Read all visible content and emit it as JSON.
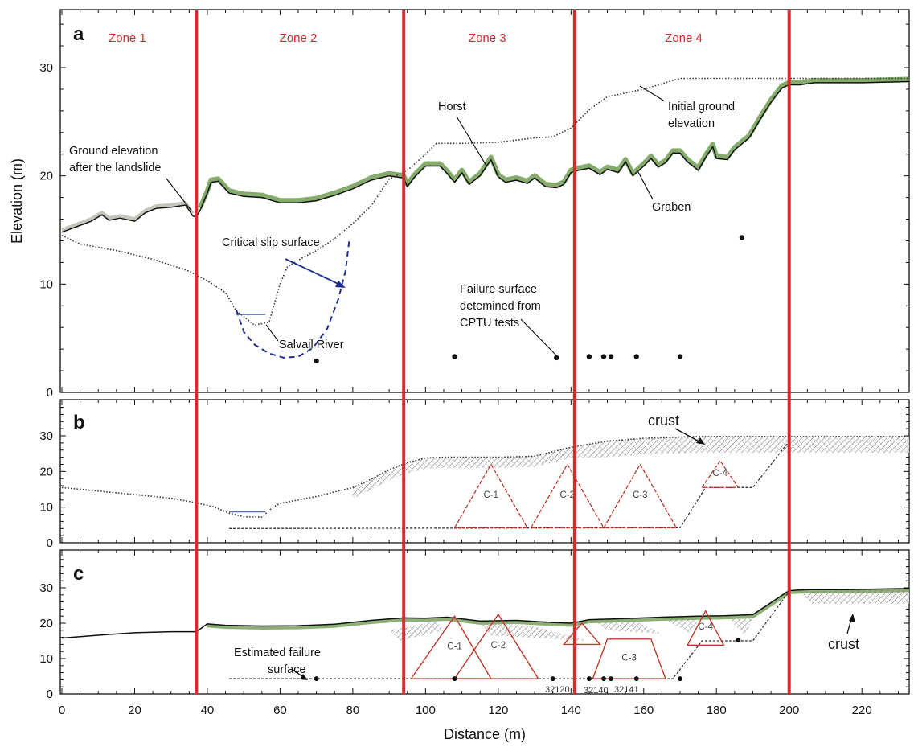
{
  "chart_data": {
    "type": "line",
    "xlabel": "Distance (m)",
    "ylabel": "Elevation (m)",
    "xlim": [
      0,
      233
    ],
    "x_ticks": [
      0,
      20,
      40,
      60,
      80,
      100,
      120,
      140,
      160,
      180,
      200,
      220
    ],
    "zone_boundaries": [
      37,
      94,
      141,
      200
    ],
    "zones": [
      {
        "label": "Zone 1",
        "x": 18
      },
      {
        "label": "Zone 2",
        "x": 65
      },
      {
        "label": "Zone 3",
        "x": 117
      },
      {
        "label": "Zone 4",
        "x": 171
      }
    ],
    "accent_colors": {
      "zones": "#e0262b",
      "triangles": "#c0392b",
      "slip": "#1f2f8f",
      "vegetation": "#5c8f3c"
    },
    "panels": [
      {
        "label": "a",
        "ylim": [
          0,
          35
        ],
        "y_ticks": [
          0,
          10,
          20,
          30
        ],
        "ground_after": [
          [
            0,
            14.8
          ],
          [
            4,
            15.3
          ],
          [
            8,
            15.8
          ],
          [
            11,
            16.4
          ],
          [
            13,
            15.9
          ],
          [
            16,
            16.1
          ],
          [
            20,
            15.8
          ],
          [
            23,
            16.6
          ],
          [
            26,
            17.0
          ],
          [
            30,
            17.1
          ],
          [
            34,
            17.3
          ],
          [
            36,
            16.3
          ],
          [
            37,
            16.2
          ],
          [
            38,
            16.8
          ],
          [
            40,
            18.4
          ],
          [
            41,
            19.4
          ],
          [
            43,
            19.5
          ],
          [
            46,
            18.4
          ],
          [
            50,
            18.1
          ],
          [
            55,
            18.0
          ],
          [
            60,
            17.5
          ],
          [
            65,
            17.5
          ],
          [
            70,
            17.7
          ],
          [
            75,
            18.2
          ],
          [
            80,
            18.8
          ],
          [
            85,
            19.6
          ],
          [
            90,
            20.0
          ],
          [
            94,
            19.8
          ],
          [
            95,
            19.0
          ],
          [
            97,
            19.9
          ],
          [
            100,
            20.9
          ],
          [
            104,
            20.9
          ],
          [
            106,
            20.2
          ],
          [
            108,
            19.4
          ],
          [
            110,
            20.3
          ],
          [
            112,
            19.2
          ],
          [
            115,
            20.0
          ],
          [
            118,
            21.5
          ],
          [
            120,
            19.9
          ],
          [
            122,
            19.4
          ],
          [
            125,
            19.6
          ],
          [
            128,
            19.3
          ],
          [
            130,
            19.8
          ],
          [
            133,
            19.0
          ],
          [
            136,
            18.9
          ],
          [
            138,
            19.2
          ],
          [
            140,
            20.3
          ],
          [
            142,
            20.5
          ],
          [
            145,
            20.7
          ],
          [
            148,
            20.1
          ],
          [
            150,
            20.6
          ],
          [
            153,
            20.3
          ],
          [
            155,
            21.3
          ],
          [
            157,
            20.0
          ],
          [
            160,
            20.9
          ],
          [
            162,
            21.6
          ],
          [
            164,
            20.8
          ],
          [
            166,
            21.2
          ],
          [
            168,
            22.1
          ],
          [
            170,
            22.1
          ],
          [
            172,
            21.3
          ],
          [
            175,
            20.5
          ],
          [
            177,
            21.7
          ],
          [
            179,
            22.7
          ],
          [
            180,
            21.6
          ],
          [
            183,
            21.5
          ],
          [
            185,
            22.4
          ],
          [
            189,
            23.5
          ],
          [
            192,
            25.2
          ],
          [
            195,
            26.8
          ],
          [
            198,
            28.1
          ],
          [
            200,
            28.4
          ],
          [
            203,
            28.4
          ],
          [
            207,
            28.6
          ],
          [
            212,
            28.6
          ],
          [
            220,
            28.6
          ],
          [
            233,
            28.7
          ]
        ],
        "initial_ground": [
          [
            0,
            14.5
          ],
          [
            5,
            13.7
          ],
          [
            15,
            13.1
          ],
          [
            25,
            12.3
          ],
          [
            35,
            11.2
          ],
          [
            40,
            10.3
          ],
          [
            45,
            9.2
          ],
          [
            48,
            7.5
          ],
          [
            50,
            7.0
          ],
          [
            53,
            6.2
          ],
          [
            57,
            6.5
          ],
          [
            60,
            10.0
          ],
          [
            62,
            11.6
          ],
          [
            66,
            12.4
          ],
          [
            70,
            13.1
          ],
          [
            75,
            14.2
          ],
          [
            80,
            15.6
          ],
          [
            85,
            17.2
          ],
          [
            90,
            19.7
          ],
          [
            95,
            20.5
          ],
          [
            100,
            22.0
          ],
          [
            103,
            23.0
          ],
          [
            110,
            23.0
          ],
          [
            120,
            23.1
          ],
          [
            130,
            23.5
          ],
          [
            135,
            23.6
          ],
          [
            140,
            24.4
          ],
          [
            145,
            26.1
          ],
          [
            150,
            27.3
          ],
          [
            160,
            28.0
          ],
          [
            170,
            29.0
          ],
          [
            180,
            29.0
          ],
          [
            200,
            29.0
          ],
          [
            233,
            29.0
          ]
        ],
        "critical_slip_surface": [
          [
            48,
            7.6
          ],
          [
            50,
            5.6
          ],
          [
            53,
            4.4
          ],
          [
            57,
            3.6
          ],
          [
            61,
            3.2
          ],
          [
            65,
            3.3
          ],
          [
            69,
            4.1
          ],
          [
            73,
            5.9
          ],
          [
            76,
            8.6
          ],
          [
            78,
            11.2
          ],
          [
            79,
            14.0
          ]
        ],
        "river_level": {
          "x": [
            48,
            56
          ],
          "y": 7.2
        },
        "cptu_points": [
          [
            70,
            2.9
          ],
          [
            108,
            3.3
          ],
          [
            136,
            3.2
          ],
          [
            145,
            3.3
          ],
          [
            149,
            3.3
          ],
          [
            151,
            3.3
          ],
          [
            158,
            3.3
          ],
          [
            170,
            3.3
          ],
          [
            187,
            14.3
          ]
        ],
        "annotations": [
          "Ground elevation",
          "after the landslide",
          "Critical slip surface",
          "Salvail River",
          "Horst",
          "Failure surface",
          "detemined from",
          "CPTU tests",
          "Initial ground",
          "elevation",
          "Graben"
        ]
      },
      {
        "label": "b",
        "ylim": [
          0,
          39
        ],
        "y_ticks": [
          0,
          10,
          20,
          30
        ],
        "initial_ground": [
          [
            0,
            15.5
          ],
          [
            10,
            14.5
          ],
          [
            20,
            13.5
          ],
          [
            30,
            12.5
          ],
          [
            37,
            11.2
          ],
          [
            42,
            10.0
          ],
          [
            46,
            8.3
          ],
          [
            50,
            7.3
          ],
          [
            55,
            7.2
          ],
          [
            58,
            10.0
          ],
          [
            60,
            11.0
          ],
          [
            65,
            12.0
          ],
          [
            70,
            13.0
          ],
          [
            80,
            15.5
          ],
          [
            85,
            17.8
          ],
          [
            90,
            20.5
          ],
          [
            95,
            22.5
          ],
          [
            100,
            23.8
          ],
          [
            105,
            24.0
          ],
          [
            120,
            24.0
          ],
          [
            130,
            24.3
          ],
          [
            140,
            26.8
          ],
          [
            150,
            28.5
          ],
          [
            160,
            29.3
          ],
          [
            175,
            29.8
          ],
          [
            233,
            29.8
          ]
        ],
        "river_level": {
          "x": [
            46,
            56
          ],
          "y": 8.7
        },
        "failure_surface": [
          [
            46,
            4.0
          ],
          [
            170,
            4.2
          ],
          [
            177,
            15.5
          ],
          [
            190,
            15.5
          ],
          [
            200,
            28.5
          ]
        ],
        "triangles": [
          {
            "label": "C-1",
            "apex": [
              118,
              22.0
            ],
            "base": [
              108,
              128
            ],
            "base_y": 4.2
          },
          {
            "label": "C-2",
            "apex": [
              139,
              22.0
            ],
            "base": [
              129,
              149
            ],
            "base_y": 4.2
          },
          {
            "label": "C-3",
            "apex": [
              159,
              22.0
            ],
            "base": [
              149,
              169
            ],
            "base_y": 4.2
          },
          {
            "label": "C-4",
            "apex": [
              181,
              23.0
            ],
            "base": [
              176,
              186
            ],
            "base_y": 15.5
          }
        ],
        "annotations": [
          "crust"
        ]
      },
      {
        "label": "c",
        "ylim": [
          0,
          39
        ],
        "y_ticks": [
          0,
          10,
          20,
          30
        ],
        "ground_after": [
          [
            0,
            15.8
          ],
          [
            10,
            16.6
          ],
          [
            20,
            17.3
          ],
          [
            30,
            17.6
          ],
          [
            37,
            17.6
          ],
          [
            40,
            19.8
          ],
          [
            45,
            19.4
          ],
          [
            55,
            19.2
          ],
          [
            65,
            19.3
          ],
          [
            75,
            19.7
          ],
          [
            85,
            20.8
          ],
          [
            94,
            21.5
          ],
          [
            100,
            21.4
          ],
          [
            106,
            21.7
          ],
          [
            115,
            20.6
          ],
          [
            125,
            20.8
          ],
          [
            135,
            20.2
          ],
          [
            140,
            20.0
          ],
          [
            145,
            21.0
          ],
          [
            155,
            21.3
          ],
          [
            165,
            21.7
          ],
          [
            175,
            22.0
          ],
          [
            182,
            22.1
          ],
          [
            190,
            22.4
          ],
          [
            195,
            25.8
          ],
          [
            200,
            29.2
          ],
          [
            205,
            29.5
          ],
          [
            215,
            29.5
          ],
          [
            233,
            29.8
          ]
        ],
        "failure_surface": [
          [
            46,
            4.3
          ],
          [
            168,
            4.3
          ],
          [
            176,
            15.0
          ],
          [
            190,
            15.0
          ],
          [
            200,
            29.0
          ]
        ],
        "failure_points": [
          [
            70,
            4.3
          ],
          [
            108,
            4.3
          ],
          [
            135,
            4.3
          ],
          [
            145,
            4.3
          ],
          [
            149,
            4.3
          ],
          [
            151,
            4.3
          ],
          [
            158,
            4.3
          ],
          [
            170,
            4.3
          ],
          [
            186,
            15.2
          ]
        ],
        "triangles": [
          {
            "label": "C-1",
            "apex": [
              108,
              22.0
            ],
            "base": [
              96,
              118
            ],
            "base_y": 4.3
          },
          {
            "label": "C-2",
            "apex": [
              120,
              22.5
            ],
            "base": [
              108,
              131
            ],
            "base_y": 4.3
          },
          {
            "label": "C-3",
            "apex": [
              155,
              15.5
            ],
            "base": [
              146,
              166
            ],
            "base_y": 4.3,
            "shape": "trapezoid",
            "top": [
              150,
              162
            ]
          },
          {
            "label": "",
            "apex": [
              143,
              20.0
            ],
            "base": [
              138,
              148
            ],
            "base_y": 14.0
          },
          {
            "label": "C-4",
            "apex": [
              177,
              23.5
            ],
            "base": [
              172,
              182
            ],
            "base_y": 13.8
          }
        ],
        "annotations": [
          "Estimated failure",
          "surface",
          "crust"
        ],
        "cptu_ids": [
          "32120",
          "32140",
          "32141"
        ]
      }
    ]
  }
}
